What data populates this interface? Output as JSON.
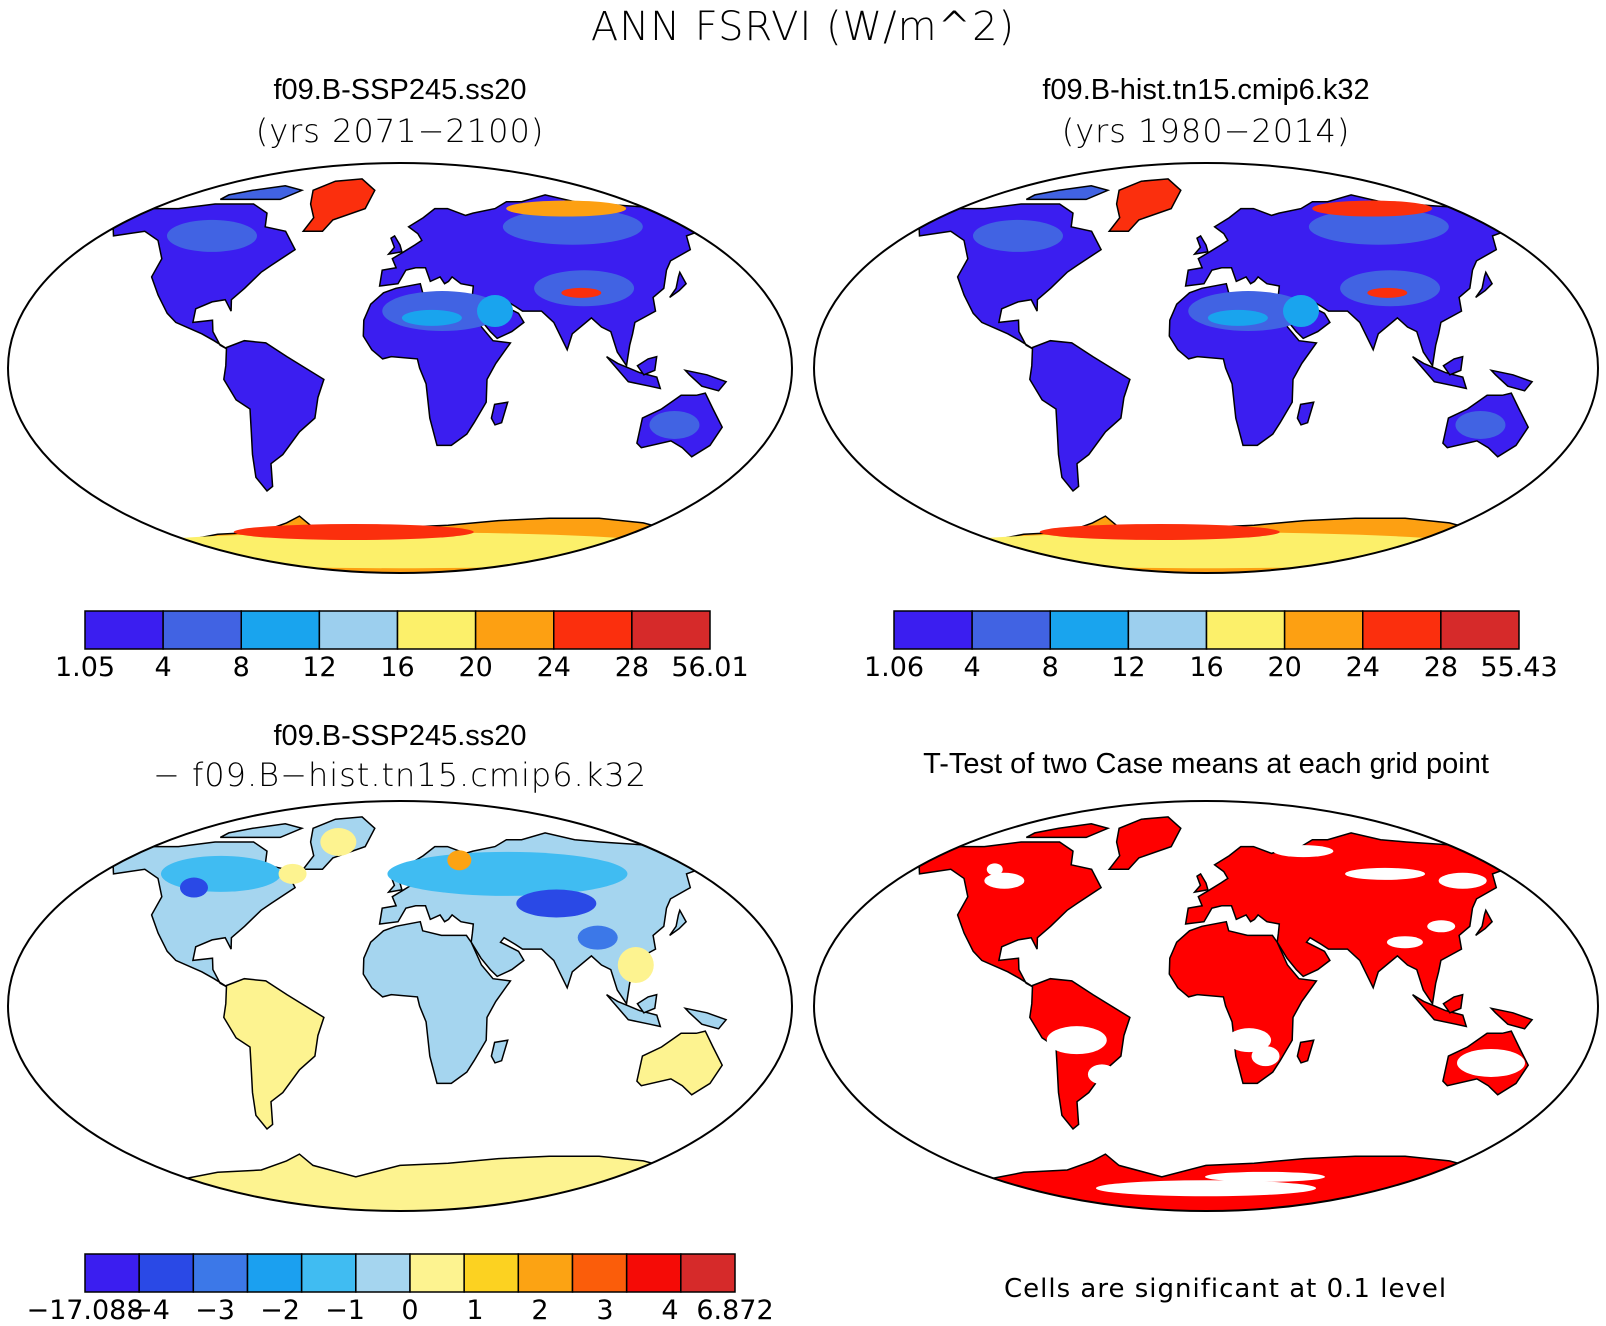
{
  "title": "ANN FSRVI (W/m^2)",
  "panels": [
    {
      "title": "f09.B-SSP245.ss20",
      "subtitle": "(yrs 2071−2100)",
      "scheme": "sequential"
    },
    {
      "title": "f09.B-hist.tn15.cmip6.k32",
      "subtitle": "(yrs 1980−2014)",
      "scheme": "sequential"
    },
    {
      "title": "f09.B-SSP245.ss20",
      "subtitle": "− f09.B−hist.tn15.cmip6.k32",
      "scheme": "difference"
    },
    {
      "title": "T-Test of two Case means at each grid point",
      "subtitle": "",
      "scheme": "significance"
    }
  ],
  "colorbars": [
    {
      "labels": [
        "1.05",
        "4",
        "8",
        "12",
        "16",
        "20",
        "24",
        "28",
        "56.01"
      ],
      "colors": [
        "#3b1ef0",
        "#4163e3",
        "#19a4ee",
        "#9ccfee",
        "#fcf06a",
        "#fda012",
        "#fb2f0d",
        "#d62a2a"
      ]
    },
    {
      "labels": [
        "1.06",
        "4",
        "8",
        "12",
        "16",
        "20",
        "24",
        "28",
        "55.43"
      ],
      "colors": [
        "#3b1ef0",
        "#4163e3",
        "#19a4ee",
        "#9ccfee",
        "#fcf06a",
        "#fda012",
        "#fb2f0d",
        "#d62a2a"
      ]
    },
    {
      "labels": [
        "−17.088",
        "−4",
        "−3",
        "−2",
        "−1",
        "0",
        "1",
        "2",
        "3",
        "4",
        "6.872"
      ],
      "colors": [
        "#3b1ef0",
        "#2a49e6",
        "#3c78e8",
        "#1ba0f0",
        "#40bcf2",
        "#a5d5ef",
        "#fdf390",
        "#fcd221",
        "#fca313",
        "#fb5d0a",
        "#f50b06",
        "#d62a2a"
      ]
    }
  ],
  "note": "Cells are significant at 0.1 level",
  "map_colors": {
    "coast": "#000000",
    "significance": "#ff0000"
  }
}
